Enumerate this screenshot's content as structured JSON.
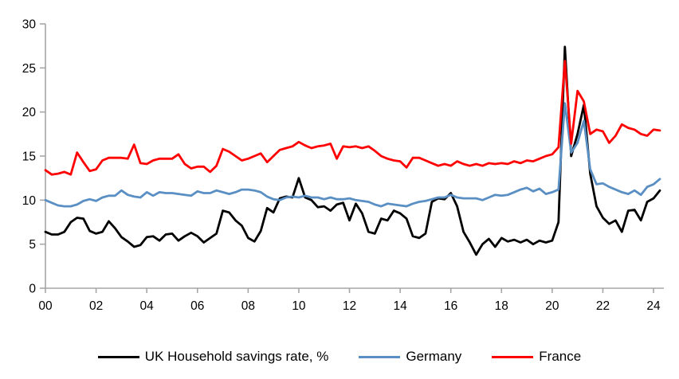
{
  "chart_data": {
    "type": "line",
    "title": "",
    "xlabel": "",
    "ylabel": "",
    "frequency": "quarterly",
    "x_start": "2000 Q1",
    "x_end": "2024 Q2",
    "ylim": [
      0,
      30
    ],
    "yticks": [
      0,
      5,
      10,
      15,
      20,
      25,
      30
    ],
    "xtick_labels": [
      "00",
      "02",
      "04",
      "06",
      "08",
      "10",
      "12",
      "14",
      "16",
      "18",
      "20",
      "22",
      "24"
    ],
    "xtick_every_n_points": 8,
    "grid": false,
    "legend_position": "bottom",
    "axis_color": "#A6A6A6",
    "text_color": "#000000",
    "series": [
      {
        "name": "UK Household savings rate, %",
        "color": "#000000",
        "values": [
          6.4,
          6.1,
          6.1,
          6.4,
          7.5,
          8.0,
          7.9,
          6.5,
          6.2,
          6.4,
          7.6,
          6.8,
          5.8,
          5.3,
          4.7,
          4.9,
          5.8,
          5.9,
          5.4,
          6.1,
          6.2,
          5.4,
          5.9,
          6.3,
          5.9,
          5.2,
          5.7,
          6.2,
          8.8,
          8.6,
          7.7,
          7.1,
          5.7,
          5.3,
          6.5,
          9.1,
          8.6,
          10.2,
          10.4,
          10.3,
          12.5,
          10.3,
          10.0,
          9.2,
          9.3,
          8.8,
          9.5,
          9.7,
          7.7,
          9.6,
          8.5,
          6.4,
          6.2,
          7.9,
          7.7,
          8.8,
          8.5,
          7.9,
          5.9,
          5.7,
          6.2,
          9.8,
          10.2,
          10.1,
          10.8,
          9.3,
          6.4,
          5.2,
          3.8,
          5.0,
          5.6,
          4.7,
          5.7,
          5.3,
          5.5,
          5.2,
          5.5,
          5.0,
          5.4,
          5.2,
          5.4,
          7.5,
          27.4,
          15.0,
          17.5,
          20.8,
          13.0,
          9.3,
          8.0,
          7.3,
          7.7,
          6.4,
          8.8,
          8.9,
          7.7,
          9.8,
          10.2,
          11.1
        ]
      },
      {
        "name": "Germany",
        "color": "#5A8FC4",
        "values": [
          10.0,
          9.7,
          9.4,
          9.3,
          9.3,
          9.5,
          9.9,
          10.1,
          9.9,
          10.3,
          10.5,
          10.5,
          11.1,
          10.6,
          10.4,
          10.3,
          10.9,
          10.5,
          10.9,
          10.8,
          10.8,
          10.7,
          10.6,
          10.5,
          11.0,
          10.8,
          10.8,
          11.1,
          10.9,
          10.7,
          10.9,
          11.2,
          11.2,
          11.1,
          10.9,
          10.4,
          10.1,
          10.0,
          10.3,
          10.4,
          10.3,
          10.5,
          10.3,
          10.3,
          10.1,
          10.3,
          10.1,
          10.1,
          10.2,
          10.0,
          9.9,
          9.8,
          9.5,
          9.3,
          9.6,
          9.5,
          9.4,
          9.3,
          9.6,
          9.8,
          9.9,
          10.1,
          10.3,
          10.3,
          10.6,
          10.3,
          10.2,
          10.2,
          10.2,
          10.0,
          10.3,
          10.6,
          10.5,
          10.6,
          10.9,
          11.2,
          11.4,
          11.0,
          11.3,
          10.7,
          10.9,
          11.2,
          21.0,
          15.4,
          16.5,
          19.0,
          13.5,
          11.8,
          11.9,
          11.5,
          11.2,
          10.9,
          10.7,
          11.1,
          10.6,
          11.5,
          11.8,
          12.4
        ]
      },
      {
        "name": "France",
        "color": "#FF0000",
        "values": [
          13.4,
          12.9,
          13.0,
          13.2,
          12.9,
          15.4,
          14.3,
          13.3,
          13.5,
          14.5,
          14.8,
          14.8,
          14.8,
          14.7,
          16.3,
          14.2,
          14.1,
          14.5,
          14.7,
          14.7,
          14.7,
          15.2,
          14.1,
          13.6,
          13.8,
          13.8,
          13.2,
          13.9,
          15.8,
          15.5,
          15.0,
          14.5,
          14.7,
          15.0,
          15.3,
          14.3,
          15.0,
          15.7,
          15.9,
          16.1,
          16.6,
          16.2,
          15.9,
          16.1,
          16.2,
          16.4,
          14.7,
          16.1,
          16.0,
          16.1,
          15.9,
          16.1,
          15.6,
          15.0,
          14.7,
          14.5,
          14.4,
          13.7,
          14.8,
          14.8,
          14.5,
          14.2,
          13.9,
          14.1,
          13.9,
          14.4,
          14.1,
          13.9,
          14.1,
          13.9,
          14.2,
          14.1,
          14.2,
          14.1,
          14.4,
          14.2,
          14.5,
          14.4,
          14.7,
          15.0,
          15.2,
          16.0,
          25.8,
          16.4,
          22.4,
          21.2,
          17.5,
          18.0,
          17.8,
          16.5,
          17.3,
          18.6,
          18.2,
          18.0,
          17.5,
          17.3,
          18.0,
          17.9
        ]
      }
    ]
  }
}
